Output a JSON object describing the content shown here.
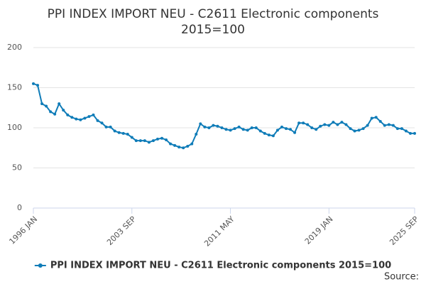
{
  "chart_data": {
    "type": "line",
    "title": [
      "PPI INDEX IMPORT NEU - C2611 Electronic components",
      "2015=100"
    ],
    "categories": [
      "1996 JAN",
      null,
      null,
      null,
      null,
      null,
      null,
      null,
      null,
      null,
      null,
      null,
      null,
      null,
      null,
      null,
      null,
      null,
      null,
      null,
      null,
      null,
      null,
      "2003 SEP",
      null,
      null,
      null,
      null,
      null,
      null,
      null,
      null,
      null,
      null,
      null,
      null,
      null,
      null,
      null,
      null,
      null,
      null,
      null,
      null,
      null,
      null,
      "2011 MAY",
      null,
      null,
      null,
      null,
      null,
      null,
      null,
      null,
      null,
      null,
      null,
      null,
      null,
      null,
      null,
      null,
      null,
      null,
      null,
      null,
      null,
      null,
      "2019 JAN",
      null,
      null,
      null,
      null,
      null,
      null,
      null,
      null,
      null,
      null,
      null,
      null,
      null,
      null,
      null,
      null,
      null,
      null,
      null,
      "2025 SEP"
    ],
    "series": [
      {
        "name": "PPI INDEX IMPORT NEU - C2611 Electronic components 2015=100",
        "color": "#0f7cb8",
        "values": [
          155,
          153,
          130,
          127,
          120,
          117,
          130,
          122,
          116,
          113,
          111,
          110,
          112,
          114,
          116,
          109,
          106,
          101,
          101,
          96,
          94,
          93,
          92,
          88,
          84,
          84,
          84,
          82,
          84,
          86,
          87,
          85,
          80,
          78,
          76,
          75,
          77,
          80,
          92,
          105,
          101,
          100,
          103,
          102,
          100,
          98,
          97,
          99,
          101,
          98,
          97,
          100,
          100,
          96,
          93,
          91,
          90,
          97,
          101,
          99,
          98,
          94,
          106,
          106,
          104,
          100,
          98,
          102,
          104,
          103,
          107,
          104,
          107,
          104,
          99,
          96,
          97,
          99,
          103,
          112,
          113,
          108,
          103,
          104,
          103,
          99,
          99,
          96,
          93,
          93
        ]
      }
    ],
    "ylim": [
      0,
      200
    ],
    "yticks": [
      0,
      50,
      100,
      150,
      200
    ],
    "grid": true,
    "source": "Source:"
  }
}
